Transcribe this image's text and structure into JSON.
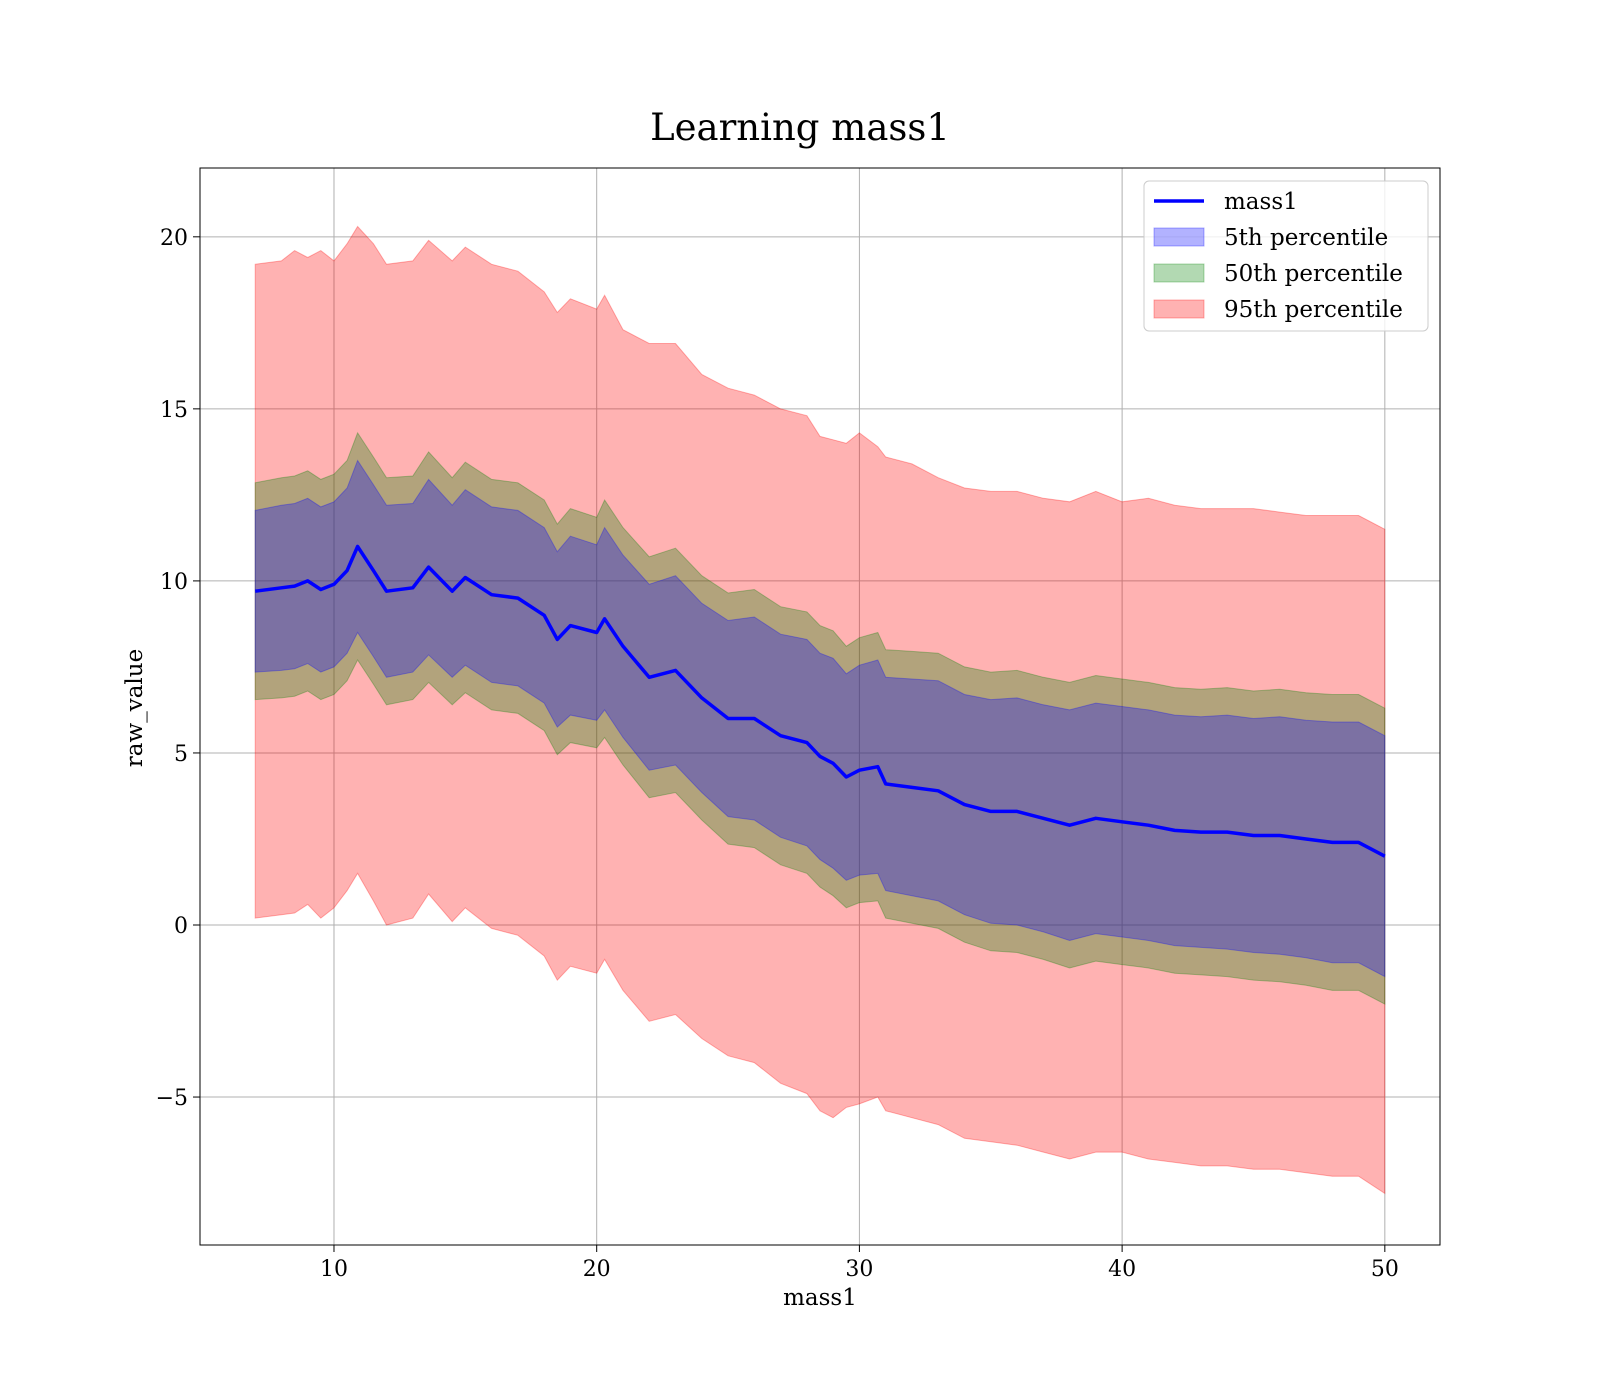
{
  "chart_data": {
    "type": "area",
    "title": "Learning mass1",
    "xlabel": "mass1",
    "ylabel": "raw_value",
    "xlim": [
      4.9,
      52.1
    ],
    "ylim": [
      -9.3,
      22.0
    ],
    "x_ticks": [
      10,
      20,
      30,
      40,
      50
    ],
    "x_tick_labels": [
      "10",
      "20",
      "30",
      "40",
      "50"
    ],
    "y_ticks": [
      -5,
      0,
      5,
      10,
      15,
      20
    ],
    "y_tick_labels": [
      "−5",
      "0",
      "5",
      "10",
      "15",
      "20"
    ],
    "grid": true,
    "legend_position": "top-right",
    "x": [
      7,
      8,
      8.5,
      9,
      9.5,
      10,
      10.5,
      10.9,
      11.5,
      12,
      13,
      13.6,
      14.5,
      15,
      16,
      17,
      18,
      18.5,
      19,
      20,
      20.3,
      21,
      22,
      23,
      24,
      25,
      26,
      27,
      28,
      28.5,
      29,
      29.5,
      30,
      30.7,
      31,
      32,
      33,
      34,
      35,
      36,
      37,
      38,
      39,
      40,
      41,
      42,
      43,
      44,
      45,
      46,
      47,
      48,
      49,
      50
    ],
    "series": [
      {
        "name": "mass1",
        "kind": "line",
        "color": "#0000ff",
        "values": [
          9.7,
          9.8,
          9.85,
          10.0,
          9.75,
          9.9,
          10.3,
          11.0,
          10.3,
          9.7,
          9.8,
          10.4,
          9.7,
          10.1,
          9.6,
          9.5,
          9.0,
          8.3,
          8.7,
          8.5,
          8.9,
          8.1,
          7.2,
          7.4,
          6.6,
          6.0,
          6.0,
          5.5,
          5.3,
          4.9,
          4.7,
          4.3,
          4.5,
          4.6,
          4.1,
          4.0,
          3.9,
          3.5,
          3.3,
          3.3,
          3.1,
          2.9,
          3.1,
          3.0,
          2.9,
          2.75,
          2.7,
          2.7,
          2.6,
          2.6,
          2.5,
          2.4,
          2.4,
          2.0
        ]
      },
      {
        "name": "5th percentile",
        "kind": "band",
        "color": "#0000ff",
        "lower": [
          7.35,
          7.4,
          7.45,
          7.6,
          7.35,
          7.5,
          7.9,
          8.5,
          7.8,
          7.2,
          7.35,
          7.85,
          7.2,
          7.55,
          7.05,
          6.95,
          6.45,
          5.75,
          6.1,
          5.95,
          6.25,
          5.45,
          4.5,
          4.65,
          3.85,
          3.15,
          3.05,
          2.55,
          2.3,
          1.9,
          1.65,
          1.3,
          1.45,
          1.5,
          1.0,
          0.85,
          0.7,
          0.3,
          0.05,
          0.0,
          -0.2,
          -0.45,
          -0.25,
          -0.35,
          -0.45,
          -0.6,
          -0.65,
          -0.7,
          -0.8,
          -0.85,
          -0.95,
          -1.1,
          -1.1,
          -1.5
        ],
        "upper": [
          12.05,
          12.2,
          12.25,
          12.4,
          12.15,
          12.3,
          12.7,
          13.5,
          12.8,
          12.2,
          12.25,
          12.95,
          12.2,
          12.65,
          12.15,
          12.05,
          11.55,
          10.85,
          11.3,
          11.05,
          11.55,
          10.75,
          9.9,
          10.15,
          9.35,
          8.85,
          8.95,
          8.45,
          8.3,
          7.9,
          7.75,
          7.3,
          7.55,
          7.7,
          7.2,
          7.15,
          7.1,
          6.7,
          6.55,
          6.6,
          6.4,
          6.25,
          6.45,
          6.35,
          6.25,
          6.1,
          6.05,
          6.1,
          6.0,
          6.05,
          5.95,
          5.9,
          5.9,
          5.5
        ]
      },
      {
        "name": "50th percentile",
        "kind": "band",
        "color": "#008000",
        "lower": [
          6.55,
          6.6,
          6.65,
          6.8,
          6.55,
          6.7,
          7.1,
          7.7,
          7.0,
          6.4,
          6.55,
          7.05,
          6.4,
          6.75,
          6.25,
          6.15,
          5.65,
          4.95,
          5.3,
          5.15,
          5.45,
          4.65,
          3.7,
          3.85,
          3.05,
          2.35,
          2.25,
          1.75,
          1.5,
          1.1,
          0.85,
          0.5,
          0.65,
          0.7,
          0.2,
          0.05,
          -0.1,
          -0.5,
          -0.75,
          -0.8,
          -1.0,
          -1.25,
          -1.05,
          -1.15,
          -1.25,
          -1.4,
          -1.45,
          -1.5,
          -1.6,
          -1.65,
          -1.75,
          -1.9,
          -1.9,
          -2.3
        ],
        "upper": [
          12.85,
          13.0,
          13.05,
          13.2,
          12.95,
          13.1,
          13.5,
          14.3,
          13.6,
          13.0,
          13.05,
          13.75,
          13.0,
          13.45,
          12.95,
          12.85,
          12.35,
          11.65,
          12.1,
          11.85,
          12.35,
          11.55,
          10.7,
          10.95,
          10.15,
          9.65,
          9.75,
          9.25,
          9.1,
          8.7,
          8.55,
          8.1,
          8.35,
          8.5,
          8.0,
          7.95,
          7.9,
          7.5,
          7.35,
          7.4,
          7.2,
          7.05,
          7.25,
          7.15,
          7.05,
          6.9,
          6.85,
          6.9,
          6.8,
          6.85,
          6.75,
          6.7,
          6.7,
          6.3
        ]
      },
      {
        "name": "95th percentile",
        "kind": "band",
        "color": "#ff0000",
        "lower": [
          0.2,
          0.3,
          0.35,
          0.6,
          0.2,
          0.5,
          1.0,
          1.5,
          0.7,
          0.0,
          0.2,
          0.9,
          0.1,
          0.5,
          -0.1,
          -0.3,
          -0.9,
          -1.6,
          -1.2,
          -1.4,
          -1.0,
          -1.9,
          -2.8,
          -2.6,
          -3.3,
          -3.8,
          -4.0,
          -4.6,
          -4.9,
          -5.4,
          -5.6,
          -5.3,
          -5.2,
          -5.0,
          -5.4,
          -5.6,
          -5.8,
          -6.2,
          -6.3,
          -6.4,
          -6.6,
          -6.8,
          -6.6,
          -6.6,
          -6.8,
          -6.9,
          -7.0,
          -7.0,
          -7.1,
          -7.1,
          -7.2,
          -7.3,
          -7.3,
          -7.8
        ],
        "upper": [
          19.2,
          19.3,
          19.6,
          19.4,
          19.6,
          19.3,
          19.8,
          20.3,
          19.8,
          19.2,
          19.3,
          19.9,
          19.3,
          19.7,
          19.2,
          19.0,
          18.4,
          17.8,
          18.2,
          17.9,
          18.3,
          17.3,
          16.9,
          16.9,
          16.0,
          15.6,
          15.4,
          15.0,
          14.8,
          14.2,
          14.1,
          14.0,
          14.3,
          13.9,
          13.6,
          13.4,
          13.0,
          12.7,
          12.6,
          12.6,
          12.4,
          12.3,
          12.6,
          12.3,
          12.4,
          12.2,
          12.1,
          12.1,
          12.1,
          12.0,
          11.9,
          11.9,
          11.9,
          11.5
        ]
      }
    ]
  }
}
